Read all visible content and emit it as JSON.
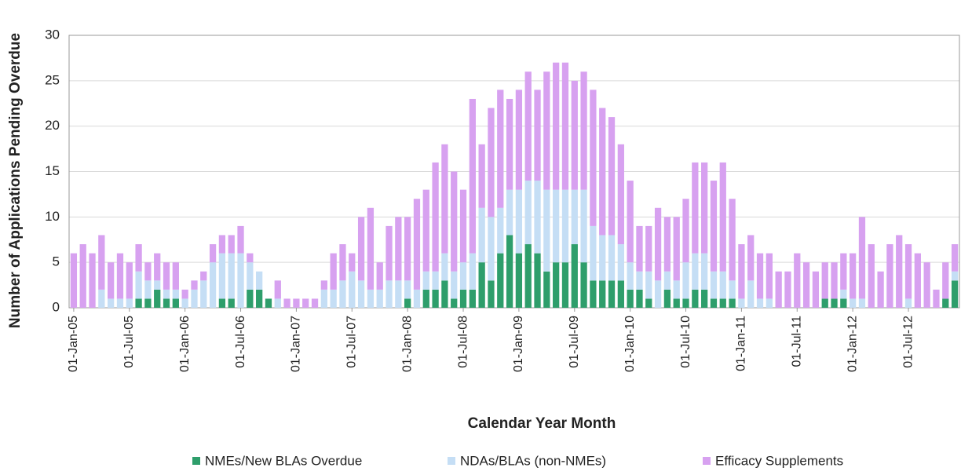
{
  "chart_data": {
    "type": "stacked_bar",
    "xlabel": "Calendar Year Month",
    "ylabel": "Number of Applications Pending Overdue",
    "categories": [
      "01-Jan-05",
      null,
      null,
      null,
      null,
      null,
      "01-Jul-05",
      null,
      null,
      null,
      null,
      null,
      "01-Jan-06",
      null,
      null,
      null,
      null,
      null,
      "01-Jul-06",
      null,
      null,
      null,
      null,
      null,
      "01-Jan-07",
      null,
      null,
      null,
      null,
      null,
      "01-Jul-07",
      null,
      null,
      null,
      null,
      null,
      "01-Jan-08",
      null,
      null,
      null,
      null,
      null,
      "01-Jul-08",
      null,
      null,
      null,
      null,
      null,
      "01-Jan-09",
      null,
      null,
      null,
      null,
      null,
      "01-Jul-09",
      null,
      null,
      null,
      null,
      null,
      "01-Jan-10",
      null,
      null,
      null,
      null,
      null,
      "01-Jul-10",
      null,
      null,
      null,
      null,
      null,
      "01-Jan-11",
      null,
      null,
      null,
      null,
      null,
      "01-Jul-11",
      null,
      null,
      null,
      null,
      null,
      "01-Jan-12",
      null,
      null,
      null,
      null,
      null,
      "01-Jul-12",
      null,
      null,
      null,
      null,
      null
    ],
    "series": [
      {
        "name": "NMEs/New BLAs Overdue",
        "color": "#2e9e6b",
        "values": [
          0,
          0,
          0,
          0,
          0,
          0,
          0,
          1,
          1,
          2,
          1,
          1,
          0,
          0,
          0,
          0,
          1,
          1,
          0,
          2,
          2,
          1,
          0,
          0,
          0,
          0,
          0,
          0,
          0,
          0,
          0,
          0,
          0,
          0,
          0,
          0,
          1,
          0,
          2,
          2,
          3,
          1,
          2,
          2,
          5,
          3,
          6,
          8,
          6,
          7,
          6,
          4,
          5,
          5,
          7,
          5,
          3,
          3,
          3,
          3,
          2,
          2,
          1,
          0,
          2,
          1,
          1,
          2,
          2,
          1,
          1,
          1,
          0,
          0,
          0,
          0,
          0,
          0,
          0,
          0,
          0,
          1,
          1,
          1,
          0,
          0,
          0,
          0,
          0,
          0,
          0,
          0,
          0,
          0,
          1,
          3
        ]
      },
      {
        "name": "NDAs/BLAs (non-NMEs)",
        "color": "#c5def5",
        "values": [
          0,
          0,
          0,
          2,
          1,
          1,
          1,
          3,
          2,
          1,
          1,
          1,
          1,
          2,
          3,
          5,
          5,
          5,
          6,
          3,
          2,
          0,
          1,
          0,
          0,
          0,
          0,
          2,
          2,
          3,
          4,
          3,
          2,
          2,
          3,
          3,
          2,
          2,
          2,
          2,
          3,
          3,
          3,
          4,
          6,
          7,
          5,
          5,
          7,
          7,
          8,
          9,
          8,
          8,
          6,
          8,
          6,
          5,
          5,
          4,
          3,
          2,
          3,
          3,
          2,
          2,
          4,
          4,
          4,
          3,
          3,
          2,
          1,
          3,
          1,
          1,
          0,
          0,
          0,
          0,
          0,
          0,
          0,
          1,
          1,
          1,
          0,
          0,
          0,
          0,
          1,
          0,
          0,
          0,
          0,
          1
        ]
      },
      {
        "name": "Efficacy Supplements",
        "color": "#d7a1f0",
        "values": [
          6,
          7,
          6,
          6,
          4,
          5,
          4,
          3,
          2,
          3,
          3,
          3,
          1,
          1,
          1,
          2,
          2,
          2,
          3,
          1,
          0,
          0,
          2,
          1,
          1,
          1,
          1,
          1,
          4,
          4,
          2,
          7,
          9,
          3,
          6,
          7,
          7,
          10,
          9,
          12,
          12,
          11,
          8,
          17,
          7,
          12,
          13,
          10,
          11,
          12,
          10,
          13,
          14,
          14,
          12,
          13,
          15,
          14,
          13,
          11,
          9,
          5,
          5,
          8,
          6,
          7,
          7,
          10,
          10,
          10,
          12,
          9,
          6,
          5,
          5,
          5,
          4,
          4,
          6,
          5,
          4,
          4,
          4,
          4,
          5,
          9,
          7,
          4,
          7,
          8,
          6,
          6,
          5,
          2,
          4,
          3
        ]
      }
    ],
    "ylim": [
      0,
      30
    ],
    "yticks": [
      0,
      5,
      10,
      15,
      20,
      25,
      30
    ],
    "grid": true
  }
}
